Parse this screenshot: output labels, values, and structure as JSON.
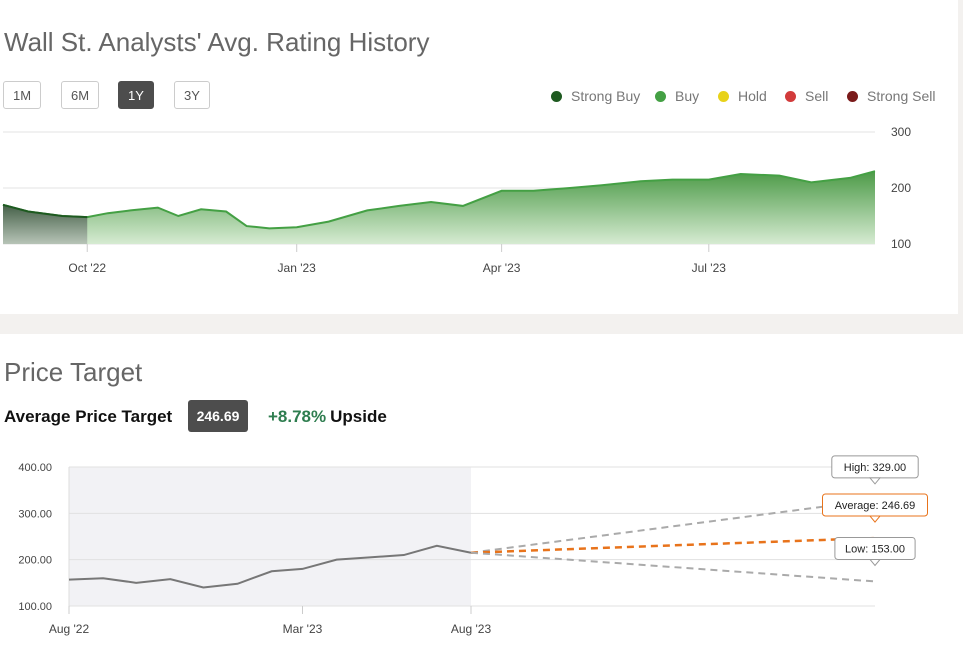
{
  "rating_history": {
    "title": "Wall St. Analysts' Avg. Rating History",
    "ranges": [
      "1M",
      "6M",
      "1Y",
      "3Y"
    ],
    "active_range": "1Y",
    "legend": [
      {
        "label": "Strong Buy",
        "color": "#1e5a20"
      },
      {
        "label": "Buy",
        "color": "#44a044"
      },
      {
        "label": "Hold",
        "color": "#e8d21a"
      },
      {
        "label": "Sell",
        "color": "#d23b3b"
      },
      {
        "label": "Strong Sell",
        "color": "#7a1a1a"
      }
    ]
  },
  "price_target": {
    "title": "Price Target",
    "average_label": "Average Price Target",
    "average_value": "246.69",
    "upside_pct": "+8.78%",
    "upside_label": "Upside",
    "high_label": "High: 329.00",
    "average_callout": "Average: 246.69",
    "low_label": "Low: 153.00"
  },
  "chart_data": [
    {
      "type": "area",
      "title": "Wall St. Analysts' Avg. Rating History",
      "x_ticks": [
        "Oct '22",
        "Jan '23",
        "Apr '23",
        "Jul '23"
      ],
      "y_ticks": [
        100,
        200,
        300
      ],
      "ylim": [
        100,
        300
      ],
      "x_range": [
        "Aug '22",
        "Sep '23"
      ],
      "grid": true,
      "legend_position": "top-right",
      "series": [
        {
          "name": "Buy",
          "color": "#44a044",
          "x": [
            "2022-08-25",
            "2022-09-05",
            "2022-09-20",
            "2022-10-01",
            "2022-10-10",
            "2022-10-20",
            "2022-11-01",
            "2022-11-10",
            "2022-11-20",
            "2022-12-01",
            "2022-12-10",
            "2022-12-20",
            "2023-01-01",
            "2023-01-15",
            "2023-02-01",
            "2023-02-15",
            "2023-03-01",
            "2023-03-15",
            "2023-04-01",
            "2023-04-15",
            "2023-05-01",
            "2023-05-15",
            "2023-06-01",
            "2023-06-15",
            "2023-07-01",
            "2023-07-15",
            "2023-08-01",
            "2023-08-15",
            "2023-09-01",
            "2023-09-12"
          ],
          "values": [
            170,
            158,
            150,
            148,
            155,
            160,
            165,
            150,
            162,
            158,
            132,
            128,
            130,
            140,
            160,
            168,
            175,
            168,
            195,
            195,
            200,
            205,
            212,
            215,
            215,
            225,
            222,
            210,
            218,
            230
          ]
        },
        {
          "name": "Strong Buy",
          "color": "#1e5a20",
          "x": [
            "2022-08-25",
            "2022-09-05",
            "2022-09-20",
            "2022-10-01"
          ],
          "values": [
            170,
            158,
            150,
            148
          ]
        }
      ]
    },
    {
      "type": "line",
      "title": "Price Target",
      "x_ticks": [
        "Aug '22",
        "Mar '23",
        "Aug '23"
      ],
      "y_ticks": [
        100,
        200,
        300,
        400
      ],
      "ylim": [
        100,
        400
      ],
      "grid": true,
      "series": [
        {
          "name": "Price",
          "color": "#777777",
          "x": [
            "2022-08-01",
            "2022-09-01",
            "2022-10-01",
            "2022-11-01",
            "2022-12-01",
            "2023-01-01",
            "2023-02-01",
            "2023-03-01",
            "2023-04-01",
            "2023-05-01",
            "2023-06-01",
            "2023-07-01",
            "2023-08-01"
          ],
          "values": [
            157,
            160,
            150,
            158,
            140,
            148,
            175,
            180,
            200,
            205,
            210,
            230,
            215
          ]
        },
        {
          "name": "High",
          "color": "#aaaaaa",
          "x": [
            "2023-08-01",
            "2024-08-01"
          ],
          "values": [
            215,
            329.0
          ]
        },
        {
          "name": "Average",
          "color": "#e8731b",
          "x": [
            "2023-08-01",
            "2024-08-01"
          ],
          "values": [
            215,
            246.69
          ]
        },
        {
          "name": "Low",
          "color": "#aaaaaa",
          "x": [
            "2023-08-01",
            "2024-08-01"
          ],
          "values": [
            215,
            153.0
          ]
        }
      ]
    }
  ]
}
